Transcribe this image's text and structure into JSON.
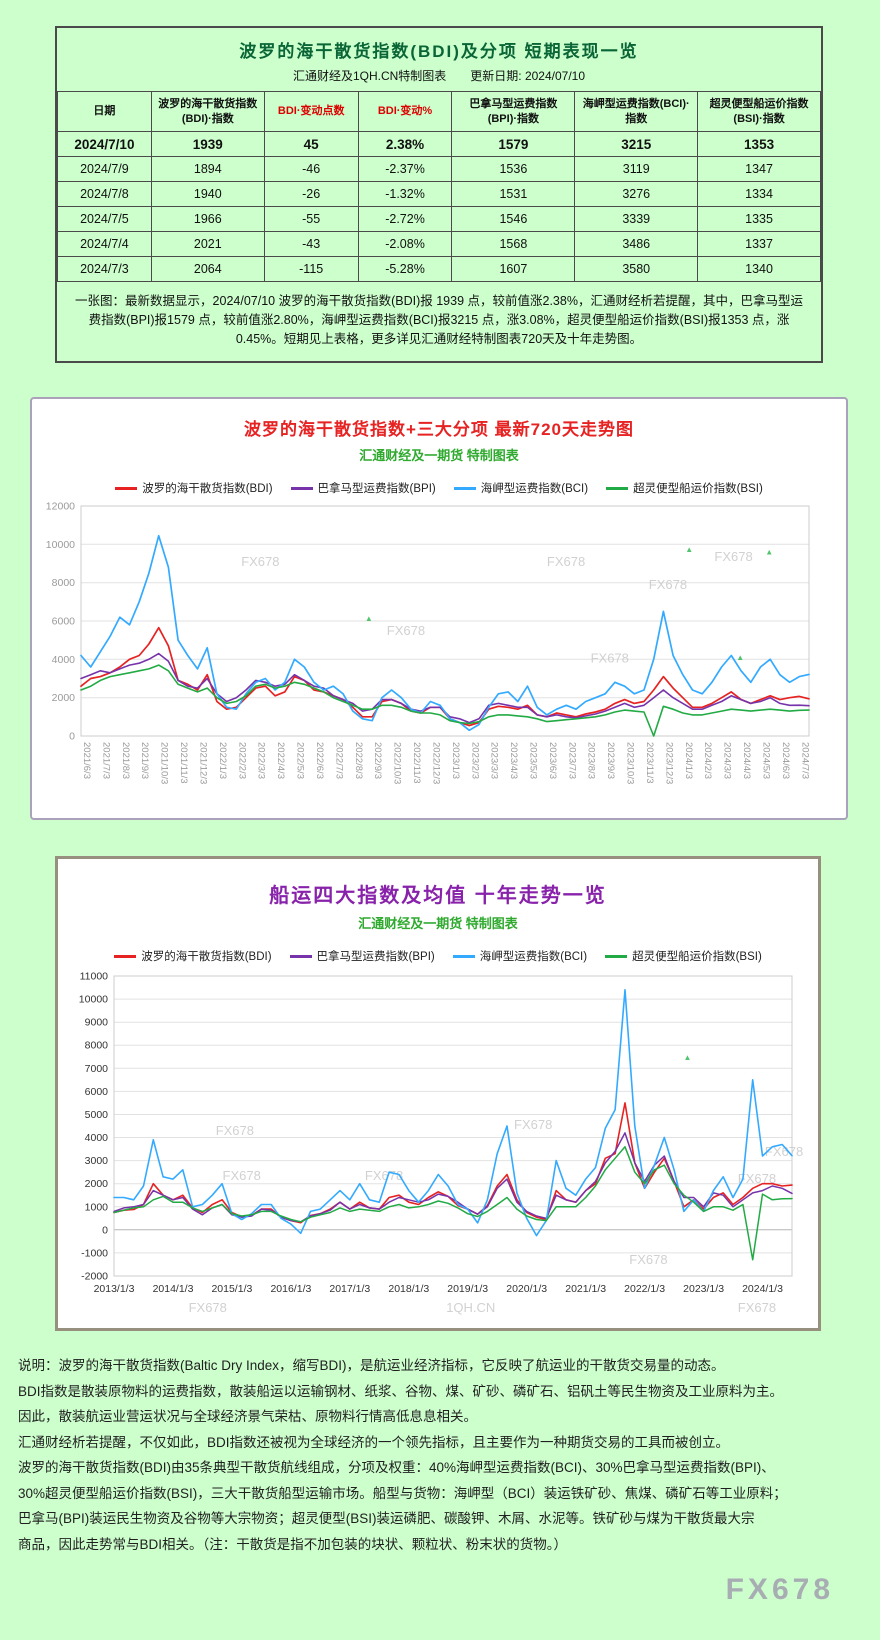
{
  "page": {
    "watermark": "FX678",
    "bg_color": "#ccffcc"
  },
  "summary": {
    "title": "波罗的海干散货指数(BDI)及分项 短期表现一览",
    "subtitle": "汇通财经及1QH.CN特制图表　　更新日期: 2024/07/10",
    "columns": [
      {
        "label": "日期",
        "accent": false
      },
      {
        "label": "波罗的海干散货指数(BDI)·指数",
        "accent": false
      },
      {
        "label": "BDI·变动点数",
        "accent": true
      },
      {
        "label": "BDI·变动%",
        "accent": true
      },
      {
        "label": "巴拿马型运费指数(BPI)·指数",
        "accent": false
      },
      {
        "label": "海岬型运费指数(BCI)·指数",
        "accent": false
      },
      {
        "label": "超灵便型船运价指数(BSI)·指数",
        "accent": false
      }
    ],
    "rows": [
      [
        "2024/7/10",
        "1939",
        "45",
        "2.38%",
        "1579",
        "3215",
        "1353"
      ],
      [
        "2024/7/9",
        "1894",
        "-46",
        "-2.37%",
        "1536",
        "3119",
        "1347"
      ],
      [
        "2024/7/8",
        "1940",
        "-26",
        "-1.32%",
        "1531",
        "3276",
        "1334"
      ],
      [
        "2024/7/5",
        "1966",
        "-55",
        "-2.72%",
        "1546",
        "3339",
        "1335"
      ],
      [
        "2024/7/4",
        "2021",
        "-43",
        "-2.08%",
        "1568",
        "3486",
        "1337"
      ],
      [
        "2024/7/3",
        "2064",
        "-115",
        "-5.28%",
        "1607",
        "3580",
        "1340"
      ]
    ],
    "note": "一张图：最新数据显示，2024/07/10 波罗的海干散货指数(BDI)报 1939 点，较前值涨2.38%，汇通财经析若提醒，其中，巴拿马型运费指数(BPI)报1579 点，较前值涨2.80%，海岬型运费指数(BCI)报3215 点，涨3.08%，超灵便型船运价指数(BSI)报1353 点，涨0.45%。短期见上表格，更多详见汇通财经特制图表720天及十年走势图。"
  },
  "chart_data": [
    {
      "type": "line",
      "title": "波罗的海干散货指数+三大分项 最新720天走势图",
      "subtitle": "汇通财经及一期货 特制图表",
      "ylim": [
        0,
        12000
      ],
      "yticks": [
        0,
        2000,
        4000,
        6000,
        8000,
        10000,
        12000
      ],
      "xticks": [
        "2021/6/3",
        "2021/7/3",
        "2021/8/3",
        "2021/9/3",
        "2021/10/3",
        "2021/11/3",
        "2021/12/3",
        "2022/1/3",
        "2022/2/3",
        "2022/3/3",
        "2022/4/3",
        "2022/5/3",
        "2022/6/3",
        "2022/7/3",
        "2022/8/3",
        "2022/9/3",
        "2022/10/3",
        "2022/11/3",
        "2022/12/3",
        "2023/1/3",
        "2023/2/3",
        "2023/3/3",
        "2023/4/3",
        "2023/5/3",
        "2023/6/3",
        "2023/7/3",
        "2023/8/3",
        "2023/9/3",
        "2023/10/3",
        "2023/11/3",
        "2023/12/3",
        "2024/1/3",
        "2024/2/3",
        "2024/3/3",
        "2024/4/3",
        "2024/5/3",
        "2024/6/3",
        "2024/7/3"
      ],
      "xtick_every": 2,
      "xtick_rotate": true,
      "tick_color": "#9a9a9a",
      "grid": true,
      "legend_position": "top",
      "series": [
        {
          "name": "波罗的海干散货指数(BDI)",
          "color": "#e62222",
          "width": 1.7,
          "values": [
            2600,
            3000,
            3100,
            3300,
            3600,
            4000,
            4200,
            4800,
            5650,
            4700,
            2900,
            2700,
            2400,
            3200,
            1800,
            1400,
            1500,
            2000,
            2500,
            2600,
            2100,
            2300,
            3100,
            2900,
            2400,
            2300,
            2100,
            1900,
            1500,
            1000,
            1000,
            1800,
            1900,
            1700,
            1300,
            1200,
            1500,
            1500,
            900,
            700,
            550,
            700,
            1400,
            1550,
            1500,
            1400,
            1600,
            1100,
            1000,
            1200,
            1100,
            1000,
            1150,
            1250,
            1400,
            1700,
            1900,
            1700,
            1800,
            2400,
            3100,
            2500,
            2000,
            1500,
            1500,
            1700,
            2000,
            2300,
            1900,
            1700,
            1900,
            2100,
            1900,
            2000,
            2064,
            1939
          ]
        },
        {
          "name": "巴拿马型运费指数(BPI)",
          "color": "#7733aa",
          "width": 1.6,
          "values": [
            3000,
            3200,
            3400,
            3300,
            3500,
            3700,
            3800,
            4000,
            4300,
            3900,
            2900,
            2600,
            2500,
            3000,
            2200,
            1800,
            2000,
            2400,
            2900,
            2800,
            2600,
            2700,
            3200,
            2900,
            2600,
            2500,
            2100,
            1900,
            1700,
            1300,
            1400,
            1900,
            1900,
            1700,
            1400,
            1300,
            1500,
            1500,
            1000,
            900,
            700,
            900,
            1600,
            1700,
            1600,
            1500,
            1500,
            1100,
            1000,
            1100,
            1000,
            950,
            1050,
            1150,
            1300,
            1500,
            1700,
            1500,
            1600,
            2000,
            2400,
            2000,
            1700,
            1400,
            1400,
            1600,
            1800,
            2100,
            1900,
            1700,
            1800,
            2000,
            1700,
            1600,
            1607,
            1579
          ]
        },
        {
          "name": "海岬型运费指数(BCI)",
          "color": "#33aaff",
          "width": 1.7,
          "values": [
            4200,
            3600,
            4400,
            5200,
            6200,
            5800,
            7000,
            8500,
            10450,
            8800,
            5000,
            4200,
            3500,
            4600,
            2200,
            1500,
            1400,
            2200,
            2800,
            3000,
            2400,
            2800,
            4000,
            3600,
            2800,
            2400,
            2600,
            2200,
            1300,
            900,
            800,
            2000,
            2400,
            2000,
            1400,
            1200,
            1800,
            1600,
            900,
            700,
            300,
            600,
            1500,
            2200,
            2300,
            1800,
            2600,
            1500,
            1100,
            1400,
            1600,
            1400,
            1800,
            2000,
            2200,
            2800,
            2600,
            2200,
            2400,
            4000,
            6500,
            4200,
            3200,
            2400,
            2200,
            2800,
            3600,
            4200,
            3400,
            2800,
            3600,
            4000,
            3200,
            2800,
            3100,
            3215
          ]
        },
        {
          "name": "超灵便型船运价指数(BSI)",
          "color": "#22aa44",
          "width": 1.6,
          "values": [
            2400,
            2600,
            2900,
            3100,
            3200,
            3300,
            3400,
            3500,
            3700,
            3400,
            2700,
            2500,
            2300,
            2500,
            2000,
            1700,
            1800,
            2100,
            2600,
            2700,
            2500,
            2600,
            2800,
            2700,
            2500,
            2300,
            2000,
            1800,
            1600,
            1400,
            1400,
            1600,
            1600,
            1500,
            1300,
            1200,
            1200,
            1100,
            800,
            700,
            650,
            750,
            1000,
            1100,
            1100,
            1050,
            1000,
            900,
            750,
            800,
            850,
            900,
            950,
            1000,
            1100,
            1250,
            1350,
            1300,
            1250,
            0,
            1550,
            1400,
            1200,
            1100,
            1100,
            1200,
            1300,
            1400,
            1350,
            1300,
            1350,
            1400,
            1350,
            1300,
            1340,
            1353
          ]
        }
      ],
      "watermarks": [
        {
          "text": "FX678",
          "x": 0.22,
          "y": 0.26
        },
        {
          "text": "FX678",
          "x": 0.64,
          "y": 0.26
        },
        {
          "text": "FX678",
          "x": 0.87,
          "y": 0.24
        },
        {
          "text": "FX678",
          "x": 0.42,
          "y": 0.56
        },
        {
          "text": "FX678",
          "x": 0.78,
          "y": 0.36
        },
        {
          "text": "FX678",
          "x": 0.7,
          "y": 0.68
        },
        {
          "text": "▲",
          "x": 0.83,
          "y": 0.2,
          "color": "#33bb55",
          "size": 8
        },
        {
          "text": "▲",
          "x": 0.94,
          "y": 0.21,
          "color": "#33bb55",
          "size": 8
        },
        {
          "text": "▲",
          "x": 0.39,
          "y": 0.5,
          "color": "#33bb55",
          "size": 8
        },
        {
          "text": "▲",
          "x": 0.9,
          "y": 0.67,
          "color": "#33bb55",
          "size": 8
        }
      ]
    },
    {
      "type": "line",
      "title": "船运四大指数及均值 十年走势一览",
      "subtitle": "汇通财经及一期货 特制图表",
      "ylim": [
        -2000,
        11000
      ],
      "yticks": [
        -2000,
        -1000,
        0,
        1000,
        2000,
        3000,
        4000,
        5000,
        6000,
        7000,
        8000,
        9000,
        10000,
        11000
      ],
      "xticks": [
        "2013/1/3",
        "2014/1/3",
        "2015/1/3",
        "2016/1/3",
        "2017/1/3",
        "2018/1/3",
        "2019/1/3",
        "2020/1/3",
        "2021/1/3",
        "2022/1/3",
        "2023/1/3",
        "2024/1/3"
      ],
      "xtick_every": 6,
      "xtick_rotate": false,
      "tick_color": "#333333",
      "grid": true,
      "legend_position": "top",
      "series": [
        {
          "name": "波罗的海干散货指数(BDI)",
          "color": "#e62222",
          "width": 1.6,
          "values": [
            750,
            850,
            880,
            1100,
            2000,
            1500,
            1300,
            1500,
            950,
            750,
            1100,
            1300,
            750,
            560,
            630,
            900,
            900,
            550,
            400,
            310,
            620,
            700,
            900,
            1200,
            900,
            1200,
            950,
            900,
            1400,
            1500,
            1200,
            1100,
            1400,
            1650,
            1450,
            1050,
            900,
            680,
            1050,
            1900,
            2400,
            1300,
            750,
            550,
            450,
            1700,
            1300,
            1200,
            1700,
            2000,
            3100,
            3300,
            5500,
            2900,
            1800,
            2500,
            3100,
            2100,
            1000,
            1300,
            900,
            1400,
            1600,
            1100,
            1400,
            1800,
            2000,
            2000,
            1900,
            1939
          ]
        },
        {
          "name": "巴拿马型运费指数(BPI)",
          "color": "#7733aa",
          "width": 1.5,
          "values": [
            800,
            950,
            1000,
            1100,
            1700,
            1500,
            1300,
            1400,
            900,
            650,
            950,
            1100,
            650,
            550,
            600,
            900,
            850,
            550,
            400,
            350,
            600,
            700,
            850,
            1200,
            900,
            1100,
            950,
            900,
            1200,
            1400,
            1300,
            1200,
            1300,
            1550,
            1450,
            1200,
            900,
            680,
            1000,
            1800,
            2200,
            1200,
            800,
            600,
            500,
            1500,
            1300,
            1200,
            1700,
            2100,
            2900,
            3400,
            4200,
            2900,
            2100,
            2800,
            3200,
            2100,
            1400,
            1400,
            1000,
            1600,
            1500,
            1000,
            1300,
            1600,
            1700,
            1900,
            1800,
            1579
          ]
        },
        {
          "name": "海岬型运费指数(BCI)",
          "color": "#33aaff",
          "width": 1.6,
          "values": [
            1400,
            1400,
            1300,
            1900,
            3900,
            2300,
            2200,
            2600,
            1000,
            1100,
            1500,
            2000,
            700,
            450,
            700,
            1100,
            1100,
            500,
            250,
            -150,
            800,
            900,
            1300,
            1700,
            1300,
            2000,
            1300,
            1200,
            2500,
            2400,
            1700,
            1200,
            1700,
            2400,
            1900,
            1100,
            900,
            300,
            1300,
            3300,
            4500,
            1600,
            500,
            -250,
            400,
            3000,
            1800,
            1500,
            2200,
            2700,
            4400,
            5200,
            10400,
            4500,
            1800,
            2800,
            4000,
            2600,
            800,
            1300,
            800,
            1700,
            2300,
            1400,
            2200,
            6500,
            3200,
            3600,
            3700,
            3215
          ]
        },
        {
          "name": "超灵便型船运价指数(BSI)",
          "color": "#22aa44",
          "width": 1.5,
          "values": [
            750,
            850,
            950,
            1000,
            1300,
            1450,
            1200,
            1200,
            950,
            800,
            950,
            1100,
            700,
            600,
            650,
            800,
            800,
            600,
            450,
            350,
            550,
            650,
            750,
            950,
            800,
            900,
            850,
            800,
            1000,
            1100,
            950,
            1000,
            1100,
            1250,
            1150,
            950,
            700,
            580,
            800,
            1100,
            1400,
            900,
            600,
            450,
            400,
            1000,
            1000,
            1000,
            1400,
            1900,
            2600,
            3100,
            3600,
            2500,
            2000,
            2600,
            2800,
            2000,
            1500,
            1200,
            800,
            1000,
            1000,
            850,
            1100,
            -1300,
            1550,
            1300,
            1350,
            1353
          ]
        }
      ],
      "watermarks": [
        {
          "text": "FX678",
          "x": 0.15,
          "y": 0.53
        },
        {
          "text": "FX678",
          "x": 0.59,
          "y": 0.51
        },
        {
          "text": "FX678",
          "x": 0.96,
          "y": 0.6
        },
        {
          "text": "FX678",
          "x": 0.16,
          "y": 0.68
        },
        {
          "text": "FX678",
          "x": 0.37,
          "y": 0.68
        },
        {
          "text": "FX678",
          "x": 0.92,
          "y": 0.69
        },
        {
          "text": "FX678",
          "x": 0.76,
          "y": 0.96
        },
        {
          "text": "FX678",
          "x": 0.11,
          "y": 1.12
        },
        {
          "text": "1QH.CN",
          "x": 0.49,
          "y": 1.12
        },
        {
          "text": "FX678",
          "x": 0.92,
          "y": 1.12
        },
        {
          "text": "▲",
          "x": 0.84,
          "y": 0.28,
          "color": "#33bb55",
          "size": 8
        }
      ]
    }
  ],
  "explanation": {
    "lines": [
      "说明：波罗的海干散货指数(Baltic Dry Index，缩写BDI)，是航运业经济指标，它反映了航运业的干散货交易量的动态。",
      "BDI指数是散装原物料的运费指数，散装船运以运输钢材、纸浆、谷物、煤、矿砂、磷矿石、铝矾土等民生物资及工业原料为主。",
      "因此，散装航运业营运状况与全球经济景气荣枯、原物料行情高低息息相关。",
      "汇通财经析若提醒，不仅如此，BDI指数还被视为全球经济的一个领先指标，且主要作为一种期货交易的工具而被创立。",
      "波罗的海干散货指数(BDI)由35条典型干散货航线组成，分项及权重：40%海岬型运费指数(BCI)、30%巴拿马型运费指数(BPI)、",
      "30%超灵便型船运价指数(BSI)，三大干散货船型运输市场。船型与货物：海岬型（BCI）装运铁矿砂、焦煤、磷矿石等工业原料；",
      "巴拿马(BPI)装运民生物资及谷物等大宗物资；超灵便型(BSI)装运磷肥、碳酸钾、木屑、水泥等。铁矿砂与煤为干散货最大宗",
      "商品，因此走势常与BDI相关。（注：干散货是指不加包装的块状、颗粒状、粉末状的货物。）"
    ]
  }
}
